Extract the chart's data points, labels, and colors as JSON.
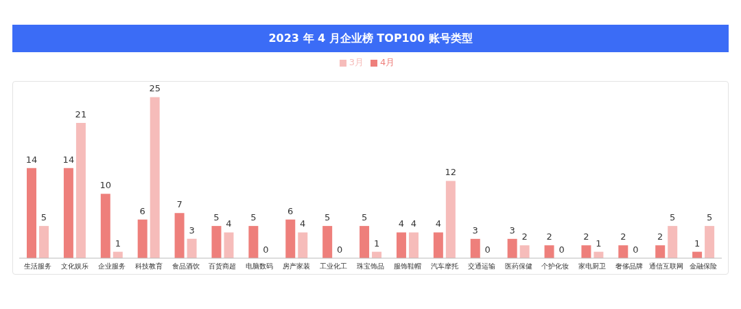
{
  "chart_data": {
    "type": "bar",
    "title": "2023 年 4 月企业榜 TOP100 账号类型",
    "categories": [
      "生活服务",
      "文化娱乐",
      "企业服务",
      "科技教育",
      "食品酒饮",
      "百货商超",
      "电脑数码",
      "房产家装",
      "工业化工",
      "珠宝饰品",
      "服饰鞋帽",
      "汽车摩托",
      "交通运输",
      "医药保健",
      "个护化妆",
      "家电厨卫",
      "奢侈品牌",
      "通信互联网",
      "金融保险"
    ],
    "series": [
      {
        "name": "4月",
        "color": "#ee7f7b",
        "values": [
          14,
          14,
          10,
          6,
          7,
          5,
          5,
          6,
          5,
          5,
          4,
          4,
          3,
          3,
          2,
          2,
          2,
          2,
          1
        ]
      },
      {
        "name": "3月",
        "color": "#f6bcba",
        "values": [
          5,
          21,
          1,
          25,
          3,
          4,
          0,
          4,
          0,
          1,
          4,
          12,
          0,
          2,
          0,
          1,
          0,
          5,
          5
        ]
      }
    ],
    "data_labels": true,
    "legend": "top",
    "grid": false
  }
}
